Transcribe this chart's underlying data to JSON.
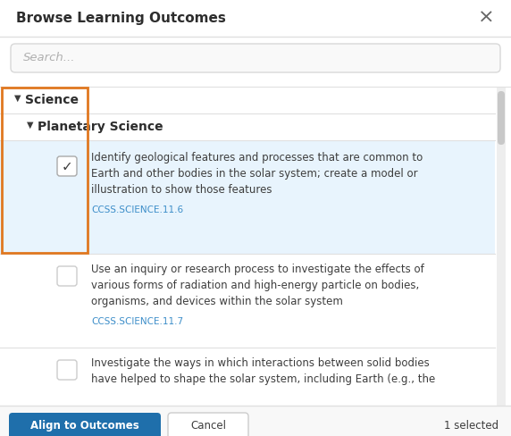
{
  "title": "Browse Learning Outcomes",
  "bg_color": "#ffffff",
  "border_color": "#cccccc",
  "outer_border": "#e0e0e0",
  "search_placeholder": "Search...",
  "search_bg": "#f9f9f9",
  "search_border": "#d8d8d8",
  "search_text_color": "#b0b0b0",
  "section1_label": "Science",
  "section2_label": "Planetary Science",
  "item1_line1": "Identify geological features and processes that are common to",
  "item1_line2": "Earth and other bodies in the solar system; create a model or",
  "item1_line3": "illustration to show those features",
  "item1_code": "CCSS.SCIENCE.11.6",
  "item1_bg": "#e8f4fd",
  "item2_line1": "Use an inquiry or research process to investigate the effects of",
  "item2_line2": "various forms of radiation and high-energy particle on bodies,",
  "item2_line3": "organisms, and devices within the solar system",
  "item2_code": "CCSS.SCIENCE.11.7",
  "item2_bg": "#ffffff",
  "item3_line1": "Investigate the ways in which interactions between solid bodies",
  "item3_line2": "have helped to shape the solar system, including Earth (e.g., the",
  "item3_bg": "#ffffff",
  "btn_align_bg": "#1f6fab",
  "btn_align_text": "Align to Outcomes",
  "btn_cancel_text": "Cancel",
  "selected_text": "1 selected",
  "orange_border": "#e07820",
  "scrollbar_bg": "#eeeeee",
  "scrollbar_color": "#c8c8c8",
  "divider_color": "#e0e0e0",
  "close_color": "#666666",
  "text_color": "#3d3d3d",
  "bold_color": "#2d2d2d",
  "code_color": "#3d8ec9",
  "gray_text": "#999999",
  "list_bg": "#f5f7f8",
  "bottom_bg": "#f8f8f8"
}
